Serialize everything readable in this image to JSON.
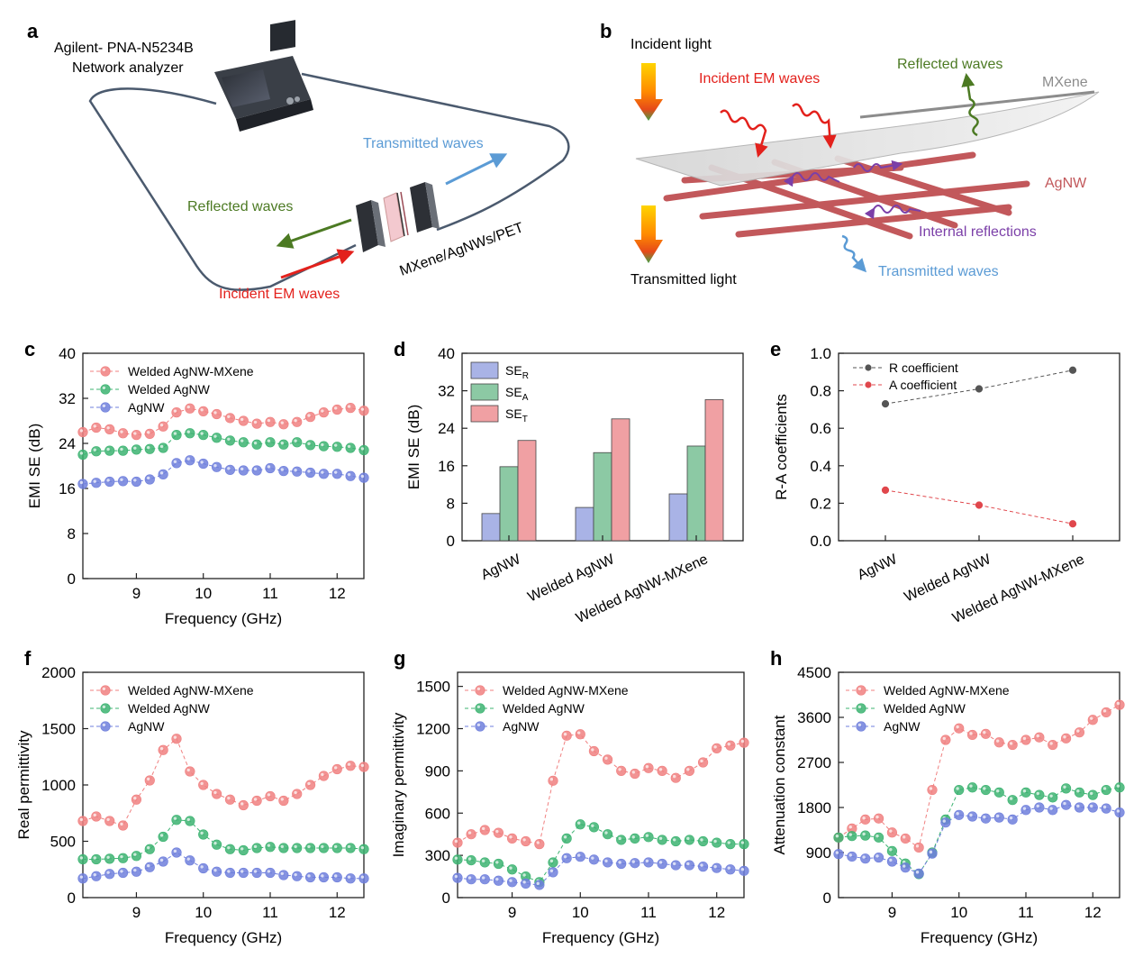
{
  "panel_labels": {
    "a": "a",
    "b": "b",
    "c": "c",
    "d": "d",
    "e": "e",
    "f": "f",
    "g": "g",
    "h": "h"
  },
  "panel_a": {
    "analyzer_line1": "Agilent- PNA-N5234B",
    "analyzer_line2": "Network analyzer",
    "transmitted": "Transmitted waves",
    "reflected": "Reflected waves",
    "sample": "MXene/AgNWs/PET",
    "incident": "Incident EM waves",
    "colors": {
      "cable": "#4b5a6e",
      "incident": "#e3211c",
      "reflected": "#4c7a23",
      "transmitted": "#5b9bd5"
    }
  },
  "panel_b": {
    "incident_light": "Incident light",
    "transmitted_light": "Transmitted light",
    "incident_em": "Incident EM waves",
    "reflected": "Reflected waves",
    "mxene": "MXene",
    "agnw": "AgNW",
    "internal": "Internal reflections",
    "transmitted": "Transmitted waves",
    "colors": {
      "wire": "#c2585b",
      "incident": "#e3211c",
      "reflected": "#4c7a23",
      "internal": "#7b3fa8",
      "transmitted": "#5b9bd5",
      "mxene": "#8c8c8c"
    }
  },
  "chart_data": [
    {
      "panel": "c",
      "type": "line",
      "xlabel": "Frequency (GHz)",
      "ylabel": "EMI SE (dB)",
      "xlim": [
        8.2,
        12.4
      ],
      "ylim": [
        0,
        40
      ],
      "xticks": [
        9,
        10,
        11,
        12
      ],
      "yticks": [
        0,
        8,
        16,
        24,
        32,
        40
      ],
      "x": [
        8.2,
        8.4,
        8.6,
        8.8,
        9.0,
        9.2,
        9.4,
        9.6,
        9.8,
        10.0,
        10.2,
        10.4,
        10.6,
        10.8,
        11.0,
        11.2,
        11.4,
        11.6,
        11.8,
        12.0,
        12.2,
        12.4
      ],
      "series": [
        {
          "name": "Welded AgNW-MXene",
          "color": "#f08080",
          "values": [
            26.0,
            26.8,
            26.5,
            25.8,
            25.5,
            25.7,
            27.0,
            29.5,
            30.2,
            29.7,
            29.2,
            28.5,
            28.0,
            27.5,
            27.8,
            27.4,
            27.8,
            28.7,
            29.5,
            30.0,
            30.3,
            29.8
          ]
        },
        {
          "name": "Welded AgNW",
          "color": "#3cb371",
          "values": [
            22.0,
            22.6,
            22.7,
            22.7,
            22.9,
            23.0,
            23.2,
            25.5,
            25.8,
            25.5,
            25.0,
            24.5,
            24.2,
            23.8,
            24.2,
            23.8,
            24.2,
            23.7,
            23.5,
            23.4,
            23.2,
            22.8
          ]
        },
        {
          "name": "AgNW",
          "color": "#6f7fdc",
          "values": [
            16.8,
            17.0,
            17.2,
            17.3,
            17.2,
            17.6,
            18.5,
            20.5,
            21.0,
            20.4,
            19.8,
            19.3,
            19.2,
            19.2,
            19.6,
            19.1,
            19.0,
            18.8,
            18.6,
            18.6,
            18.2,
            17.9
          ]
        }
      ]
    },
    {
      "panel": "d",
      "type": "bar",
      "ylabel": "EMI SE (dB)",
      "ylim": [
        0,
        40
      ],
      "yticks": [
        0,
        8,
        16,
        24,
        32,
        40
      ],
      "categories": [
        "AgNW",
        "Welded AgNW",
        "Welded AgNW-MXene"
      ],
      "series": [
        {
          "name": "SE",
          "sub": "R",
          "color": "#a9b3e6",
          "values": [
            5.8,
            7.1,
            10.0
          ]
        },
        {
          "name": "SE",
          "sub": "A",
          "color": "#8cc9a4",
          "values": [
            15.8,
            18.8,
            20.2
          ]
        },
        {
          "name": "SE",
          "sub": "T",
          "color": "#f0a0a3",
          "values": [
            21.4,
            26.0,
            30.1
          ]
        }
      ]
    },
    {
      "panel": "e",
      "type": "scatter",
      "ylabel": "R-A coefficients",
      "ylim": [
        0.0,
        1.0
      ],
      "yticks": [
        "0.0",
        "0.2",
        "0.4",
        "0.6",
        "0.8",
        "1.0"
      ],
      "categories": [
        "AgNW",
        "Welded AgNW",
        "Welded AgNW-MXene"
      ],
      "series": [
        {
          "name": "R coefficient",
          "color": "#555555",
          "values": [
            0.73,
            0.81,
            0.91
          ]
        },
        {
          "name": "A coefficient",
          "color": "#e0474c",
          "values": [
            0.27,
            0.19,
            0.09
          ]
        }
      ]
    },
    {
      "panel": "f",
      "type": "line",
      "xlabel": "Frequency (GHz)",
      "ylabel": "Real permittivity",
      "xlim": [
        8.2,
        12.4
      ],
      "ylim": [
        0,
        2000
      ],
      "xticks": [
        9,
        10,
        11,
        12
      ],
      "yticks": [
        0,
        500,
        1000,
        1500,
        2000
      ],
      "x": [
        8.2,
        8.4,
        8.6,
        8.8,
        9.0,
        9.2,
        9.4,
        9.6,
        9.8,
        10.0,
        10.2,
        10.4,
        10.6,
        10.8,
        11.0,
        11.2,
        11.4,
        11.6,
        11.8,
        12.0,
        12.2,
        12.4
      ],
      "series": [
        {
          "name": "Welded AgNW-MXene",
          "color": "#f08080",
          "values": [
            680,
            720,
            680,
            640,
            870,
            1040,
            1310,
            1410,
            1120,
            1000,
            920,
            870,
            820,
            860,
            900,
            860,
            920,
            1000,
            1080,
            1140,
            1170,
            1160
          ]
        },
        {
          "name": "Welded AgNW",
          "color": "#3cb371",
          "values": [
            340,
            340,
            345,
            350,
            370,
            430,
            540,
            690,
            680,
            560,
            470,
            430,
            420,
            440,
            450,
            440,
            440,
            440,
            440,
            440,
            440,
            430
          ]
        },
        {
          "name": "AgNW",
          "color": "#6f7fdc",
          "values": [
            170,
            190,
            210,
            220,
            230,
            270,
            320,
            400,
            330,
            260,
            230,
            220,
            220,
            220,
            220,
            200,
            190,
            180,
            180,
            180,
            170,
            170
          ]
        }
      ]
    },
    {
      "panel": "g",
      "type": "line",
      "xlabel": "Frequency (GHz)",
      "ylabel": "Imaginary permittivity",
      "xlim": [
        8.2,
        12.4
      ],
      "ylim": [
        0,
        1600
      ],
      "xticks": [
        9,
        10,
        11,
        12
      ],
      "yticks": [
        0,
        300,
        600,
        900,
        1200,
        1500
      ],
      "x": [
        8.2,
        8.4,
        8.6,
        8.8,
        9.0,
        9.2,
        9.4,
        9.6,
        9.8,
        10.0,
        10.2,
        10.4,
        10.6,
        10.8,
        11.0,
        11.2,
        11.4,
        11.6,
        11.8,
        12.0,
        12.2,
        12.4
      ],
      "series": [
        {
          "name": "Welded AgNW-MXene",
          "color": "#f08080",
          "values": [
            390,
            450,
            480,
            460,
            420,
            400,
            380,
            830,
            1150,
            1160,
            1040,
            980,
            900,
            880,
            920,
            900,
            850,
            900,
            960,
            1060,
            1080,
            1100
          ]
        },
        {
          "name": "Welded AgNW",
          "color": "#3cb371",
          "values": [
            270,
            265,
            250,
            240,
            200,
            150,
            110,
            250,
            420,
            520,
            500,
            450,
            410,
            420,
            430,
            410,
            400,
            410,
            400,
            390,
            380,
            380
          ]
        },
        {
          "name": "AgNW",
          "color": "#6f7fdc",
          "values": [
            140,
            130,
            130,
            120,
            110,
            100,
            90,
            180,
            280,
            290,
            270,
            250,
            240,
            245,
            250,
            240,
            230,
            230,
            220,
            210,
            200,
            190
          ]
        }
      ]
    },
    {
      "panel": "h",
      "type": "line",
      "xlabel": "Frequency (GHz)",
      "ylabel": "Attenuation constant",
      "xlim": [
        8.2,
        12.4
      ],
      "ylim": [
        0,
        4500
      ],
      "xticks": [
        9,
        10,
        11,
        12
      ],
      "yticks": [
        0,
        900,
        1800,
        2700,
        3600,
        4500
      ],
      "x": [
        8.2,
        8.4,
        8.6,
        8.8,
        9.0,
        9.2,
        9.4,
        9.6,
        9.8,
        10.0,
        10.2,
        10.4,
        10.6,
        10.8,
        11.0,
        11.2,
        11.4,
        11.6,
        11.8,
        12.0,
        12.2,
        12.4
      ],
      "series": [
        {
          "name": "Welded AgNW-MXene",
          "color": "#f08080",
          "values": [
            1200,
            1380,
            1560,
            1580,
            1300,
            1180,
            1000,
            2150,
            3150,
            3380,
            3250,
            3270,
            3100,
            3050,
            3150,
            3200,
            3050,
            3180,
            3300,
            3550,
            3700,
            3850
          ]
        },
        {
          "name": "Welded AgNW",
          "color": "#3cb371",
          "values": [
            1200,
            1230,
            1240,
            1200,
            930,
            680,
            470,
            900,
            1560,
            2150,
            2200,
            2150,
            2100,
            1950,
            2100,
            2050,
            2000,
            2180,
            2100,
            2050,
            2150,
            2200
          ]
        },
        {
          "name": "AgNW",
          "color": "#6f7fdc",
          "values": [
            870,
            820,
            780,
            800,
            720,
            600,
            480,
            880,
            1500,
            1650,
            1620,
            1580,
            1600,
            1560,
            1750,
            1800,
            1750,
            1850,
            1800,
            1800,
            1780,
            1700
          ]
        }
      ]
    }
  ]
}
